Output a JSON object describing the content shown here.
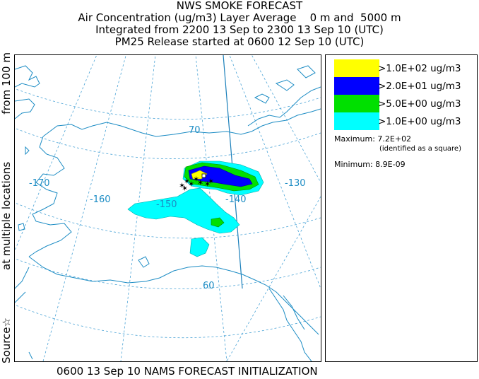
{
  "header": {
    "title": "NWS SMOKE FORECAST",
    "line2": "Air Concentration (ug/m3) Layer Average    0 m and  5000 m",
    "line3": "Integrated from 2200 13 Sep to 2300 13 Sep 10 (UTC)",
    "line4": "PM25 Release started at 0600 12 Sep 10 (UTC)"
  },
  "side_label": {
    "part1": "Source☆",
    "part2": "at multiple locations",
    "part3": "from    100 m"
  },
  "footer": {
    "text": "0600 13 Sep 10 NAMS FORECAST INITIALIZATION"
  },
  "map": {
    "lon_labels": [
      "-170",
      "-160",
      "-150",
      "-140",
      "-130"
    ],
    "lat_labels": [
      "70",
      "60"
    ],
    "colors": {
      "coast": "#1c8cc4",
      "grid": "#4aa3d6",
      "border": "#1a7fba"
    }
  },
  "legend": {
    "items": [
      {
        "label": ">1.0E+02 ug/m3",
        "color": "#ffff00"
      },
      {
        "label": ">2.0E+01 ug/m3",
        "color": "#0000ff"
      },
      {
        "label": ">5.0E+00 ug/m3",
        "color": "#00e000"
      },
      {
        "label": ">1.0E+00 ug/m3",
        "color": "#00ffff"
      }
    ],
    "max_label": "Maximum: 7.2E+02",
    "max_note": "(identified as a square)",
    "min_label": "Minimum: 8.9E-09"
  }
}
